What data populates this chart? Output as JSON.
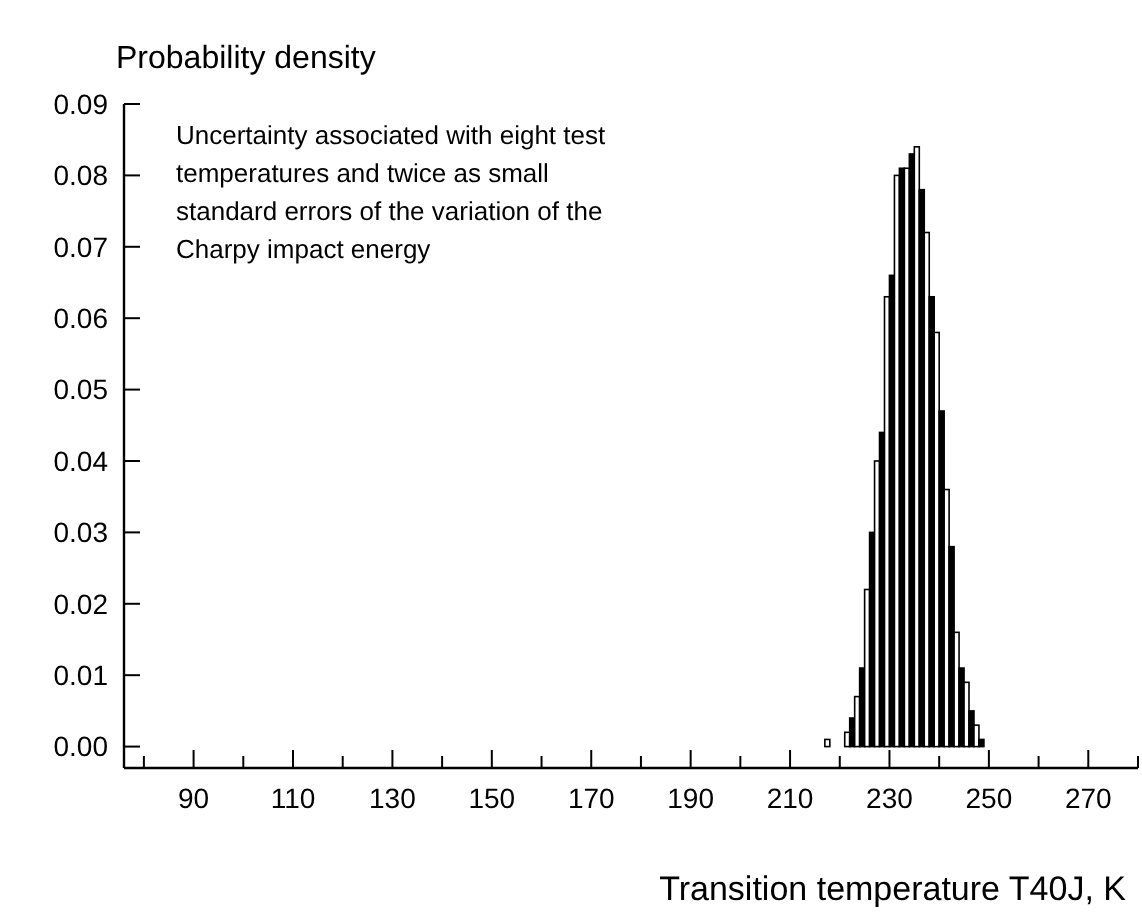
{
  "chart_data": {
    "type": "histogram",
    "ylabel": "Probability density",
    "xlabel": "Transition temperature T40J, K",
    "annotations": [
      "Uncertainty associated with eight test temperatures and twice as small standard errors of the variation of the Charpy impact energy"
    ],
    "bins": [
      217,
      218,
      219,
      220,
      221,
      222,
      223,
      224,
      225,
      226,
      227,
      228,
      229,
      230,
      231,
      232,
      233,
      234,
      235,
      236,
      237,
      238,
      239,
      240,
      241,
      242,
      243,
      244,
      245,
      246,
      247,
      248,
      249
    ],
    "values": [
      0.001,
      0,
      0,
      0,
      0.002,
      0.004,
      0.007,
      0.011,
      0.022,
      0.03,
      0.04,
      0.044,
      0.063,
      0.066,
      0.08,
      0.081,
      0.081,
      0.083,
      0.084,
      0.078,
      0.072,
      0.063,
      0.058,
      0.047,
      0.036,
      0.028,
      0.016,
      0.011,
      0.009,
      0.005,
      0.003,
      0.001
    ],
    "colors": [
      "#ffffff",
      "#000000",
      "#ffffff",
      "#000000",
      "#ffffff",
      "#000000",
      "#ffffff",
      "#000000",
      "#ffffff",
      "#000000",
      "#ffffff",
      "#000000",
      "#ffffff",
      "#000000",
      "#ffffff",
      "#000000",
      "#ffffff",
      "#000000",
      "#ffffff",
      "#000000",
      "#ffffff",
      "#000000",
      "#ffffff",
      "#000000",
      "#ffffff",
      "#000000",
      "#ffffff",
      "#000000",
      "#ffffff",
      "#000000",
      "#ffffff",
      "#000000"
    ],
    "xlim": [
      76,
      280
    ],
    "xticks": [
      {
        "value": 80,
        "label": null
      },
      90,
      {
        "value": 100,
        "label": null
      },
      110,
      {
        "value": 120,
        "label": null
      },
      130,
      {
        "value": 140,
        "label": null
      },
      150,
      {
        "value": 160,
        "label": null
      },
      170,
      {
        "value": 180,
        "label": null
      },
      190,
      {
        "value": 200,
        "label": null
      },
      210,
      {
        "value": 220,
        "label": null
      },
      230,
      {
        "value": 240,
        "label": null
      },
      250,
      {
        "value": 260,
        "label": null
      },
      270,
      {
        "value": 280,
        "label": null
      }
    ],
    "ylim": [
      -0.003,
      0.09
    ],
    "yticks": [
      {
        "value": 0,
        "label": "0.00"
      },
      {
        "value": 0.01,
        "label": "0.01"
      },
      {
        "value": 0.02,
        "label": "0.02"
      },
      {
        "value": 0.03,
        "label": "0.03"
      },
      {
        "value": 0.04,
        "label": "0.04"
      },
      {
        "value": 0.05,
        "label": "0.05"
      },
      {
        "value": 0.06,
        "label": "0.06"
      },
      {
        "value": 0.07,
        "label": "0.07"
      },
      {
        "value": 0.08,
        "label": "0.08"
      },
      {
        "value": 0.09,
        "label": "0.09"
      }
    ],
    "grid": false
  }
}
